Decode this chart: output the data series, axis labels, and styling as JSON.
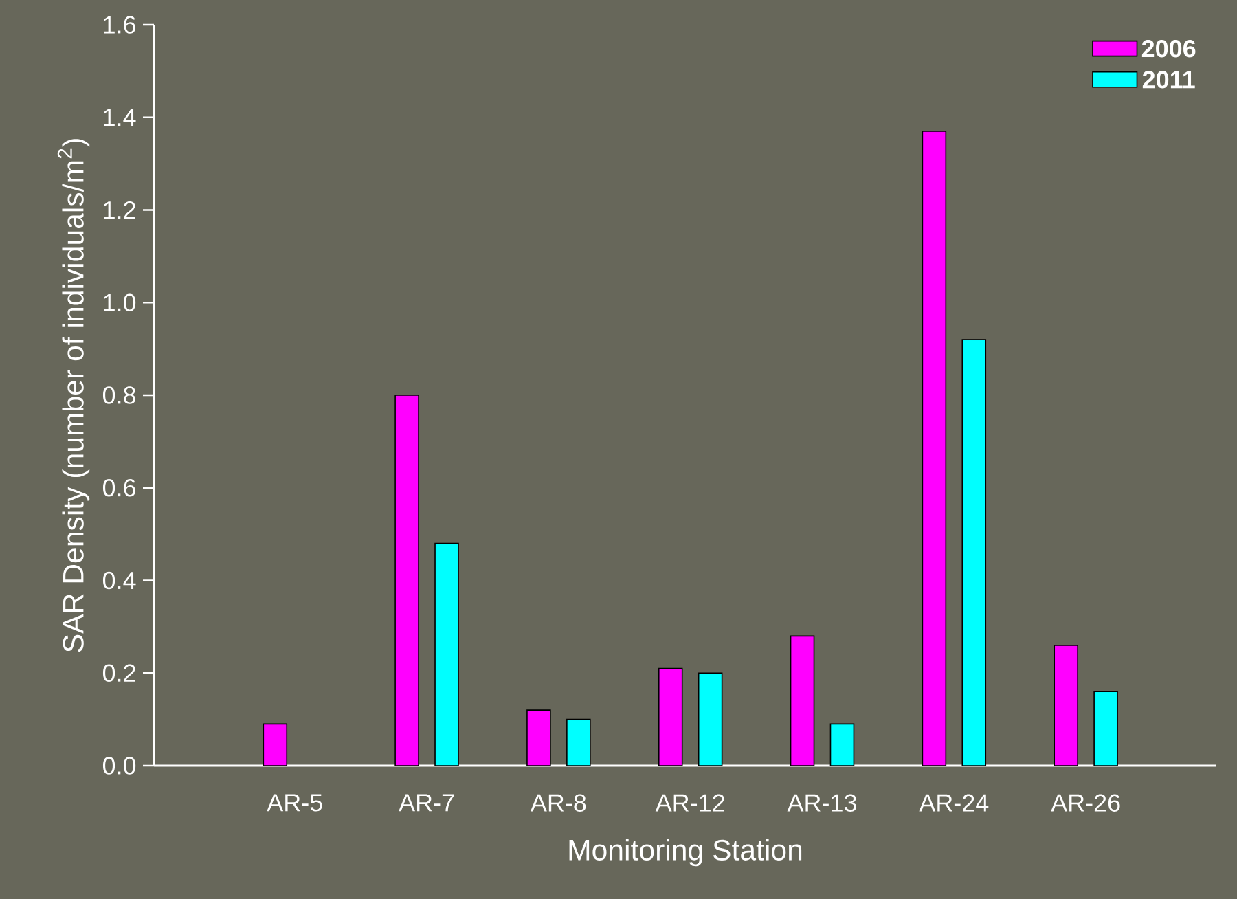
{
  "chart_data": {
    "type": "bar",
    "xlabel": "Monitoring Station",
    "ylabel": "SAR Density (number of individuals/m$^{2}$)",
    "categories": [
      "AR-5",
      "AR-7",
      "AR-8",
      "AR-12",
      "AR-13",
      "AR-24",
      "AR-26"
    ],
    "series": [
      {
        "name": "2006",
        "color": "#ff00ff",
        "values": [
          0.09,
          0.8,
          0.12,
          0.21,
          0.28,
          1.37,
          0.26
        ]
      },
      {
        "name": "2011",
        "color": "#00ffff",
        "values": [
          null,
          0.48,
          0.1,
          0.2,
          0.09,
          0.92,
          0.16
        ]
      }
    ],
    "ylim": [
      0,
      1.6
    ],
    "yticks": [
      {
        "value": 0,
        "label": "0.0"
      },
      0.2,
      0.4,
      0.6,
      0.8,
      {
        "value": 1,
        "label": "1.0"
      },
      1.2,
      1.4,
      1.6
    ],
    "legend": "top right",
    "grid": false
  }
}
